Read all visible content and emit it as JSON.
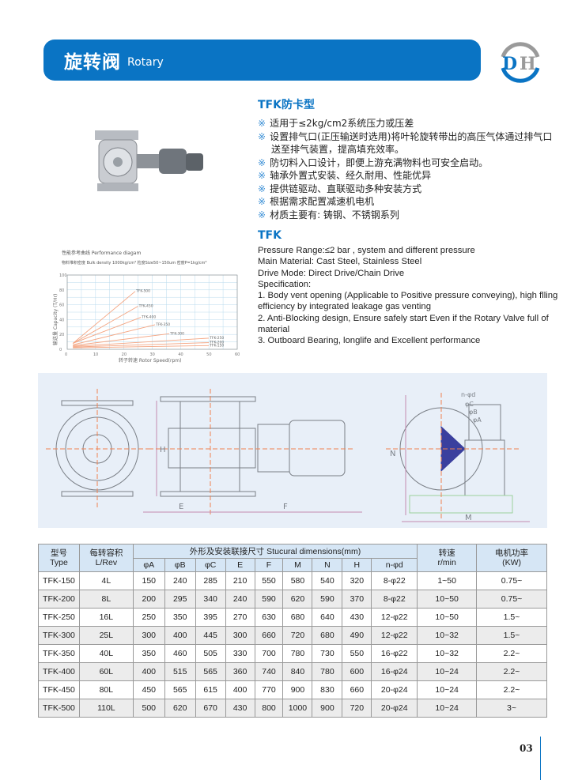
{
  "header": {
    "title_zh": "旋转阀",
    "title_en": "Rotary",
    "logo": "DH"
  },
  "features": {
    "heading": "TFK防卡型",
    "bullet_mark": "※",
    "items": [
      "适用于≤2kg/cm2系统压力或压差",
      "设置排气口(正压输送时选用)将叶轮旋转带出的高压气体通过排气口送至排气装置，提高填充效率。",
      "防切料入口设计，即便上游充满物料也可安全启动。",
      "轴承外置式安装、经久耐用、性能优异",
      "提供链驱动、直联驱动多种安装方式",
      "根据需求配置减速机电机",
      "材质主要有: 铸钢、不锈钢系列"
    ]
  },
  "specs": {
    "heading": "TFK",
    "lines": [
      "Pressure Range:≤2 bar , system and different pressure",
      "Main Material: Cast Steel, Stainless Steel",
      "Drive Mode: Direct Drive/Chain Drive",
      "Specification:",
      "1. Body vent opening (Applicable to Positive pressure conveying), high flling efficiency by integrated leakage gas venting",
      "2. Anti-Blocking design, Ensure safely start Even if the Rotary Valve full of material",
      "3. Outboard Bearing, longlife and Excellent performance"
    ]
  },
  "performance_diagram": {
    "title": "性能参考曲线 Performance diagam",
    "subtitle": "物料堆积密度 Bulk density 1000kg/cm³  粒度Size50~150um 密度P=1kg/cm³",
    "xlabel": "转子转速 Rotor Speed(rpm)",
    "ylabel": "输送量 Capacity (T/Hr)",
    "xlim": [
      0,
      60
    ],
    "ylim": [
      0,
      100
    ],
    "xticks": [
      0,
      10,
      20,
      30,
      40,
      50,
      60
    ],
    "yticks": [
      0,
      20,
      40,
      60,
      80,
      100
    ],
    "line_color": "#f4a582",
    "series": [
      {
        "name": "TFK-500",
        "x": [
          2,
          24
        ],
        "y": [
          8,
          78
        ]
      },
      {
        "name": "TFK-450",
        "x": [
          2,
          25
        ],
        "y": [
          8,
          58
        ]
      },
      {
        "name": "TFK-400",
        "x": [
          2,
          26
        ],
        "y": [
          8,
          43
        ]
      },
      {
        "name": "TFK-350",
        "x": [
          2,
          31
        ],
        "y": [
          6,
          33
        ]
      },
      {
        "name": "TFK-300",
        "x": [
          2,
          36
        ],
        "y": [
          5,
          21
        ]
      },
      {
        "name": "TFK-250",
        "x": [
          2,
          50
        ],
        "y": [
          4,
          15
        ]
      },
      {
        "name": "TFK-200",
        "x": [
          2,
          50
        ],
        "y": [
          3,
          9
        ]
      },
      {
        "name": "TFK-150",
        "x": [
          2,
          50
        ],
        "y": [
          2,
          5
        ]
      }
    ]
  },
  "drawing": {
    "labels": {
      "H": "H",
      "E": "E",
      "F": "F",
      "N": "N",
      "M": "M",
      "nd": "n-φd",
      "C": "φC",
      "B": "φB",
      "A": "φA"
    }
  },
  "table": {
    "h_type": [
      "型号",
      "Type"
    ],
    "h_vol": [
      "每转容积",
      "L/Rev"
    ],
    "h_dims": "外形及安装联接尺寸 Stucural dimensions(mm)",
    "h_speed": [
      "转速",
      "r/min"
    ],
    "h_power": [
      "电机功率",
      "(KW)"
    ],
    "dim_cols": [
      "φA",
      "φB",
      "φC",
      "E",
      "F",
      "M",
      "N",
      "H",
      "n-φd"
    ],
    "rows": [
      [
        "TFK-150",
        "4L",
        "150",
        "240",
        "285",
        "210",
        "550",
        "580",
        "540",
        "320",
        "8-φ22",
        "1~50",
        "0.75~"
      ],
      [
        "TFK-200",
        "8L",
        "200",
        "295",
        "340",
        "240",
        "590",
        "620",
        "590",
        "370",
        "8-φ22",
        "10~50",
        "0.75~"
      ],
      [
        "TFK-250",
        "16L",
        "250",
        "350",
        "395",
        "270",
        "630",
        "680",
        "640",
        "430",
        "12-φ22",
        "10~50",
        "1.5~"
      ],
      [
        "TFK-300",
        "25L",
        "300",
        "400",
        "445",
        "300",
        "660",
        "720",
        "680",
        "490",
        "12-φ22",
        "10~32",
        "1.5~"
      ],
      [
        "TFK-350",
        "40L",
        "350",
        "460",
        "505",
        "330",
        "700",
        "780",
        "730",
        "550",
        "16-φ22",
        "10~32",
        "2.2~"
      ],
      [
        "TFK-400",
        "60L",
        "400",
        "515",
        "565",
        "360",
        "740",
        "840",
        "780",
        "600",
        "16-φ24",
        "10~24",
        "2.2~"
      ],
      [
        "TFK-450",
        "80L",
        "450",
        "565",
        "615",
        "400",
        "770",
        "900",
        "830",
        "660",
        "20-φ24",
        "10~24",
        "2.2~"
      ],
      [
        "TFK-500",
        "110L",
        "500",
        "620",
        "670",
        "430",
        "800",
        "1000",
        "900",
        "720",
        "20-φ24",
        "10~24",
        "3~"
      ]
    ]
  },
  "page_number": "03",
  "colors": {
    "brand": "#0a74c4",
    "header_bg": "#d6e6f5",
    "drawing_bg": "#e8eff8"
  }
}
